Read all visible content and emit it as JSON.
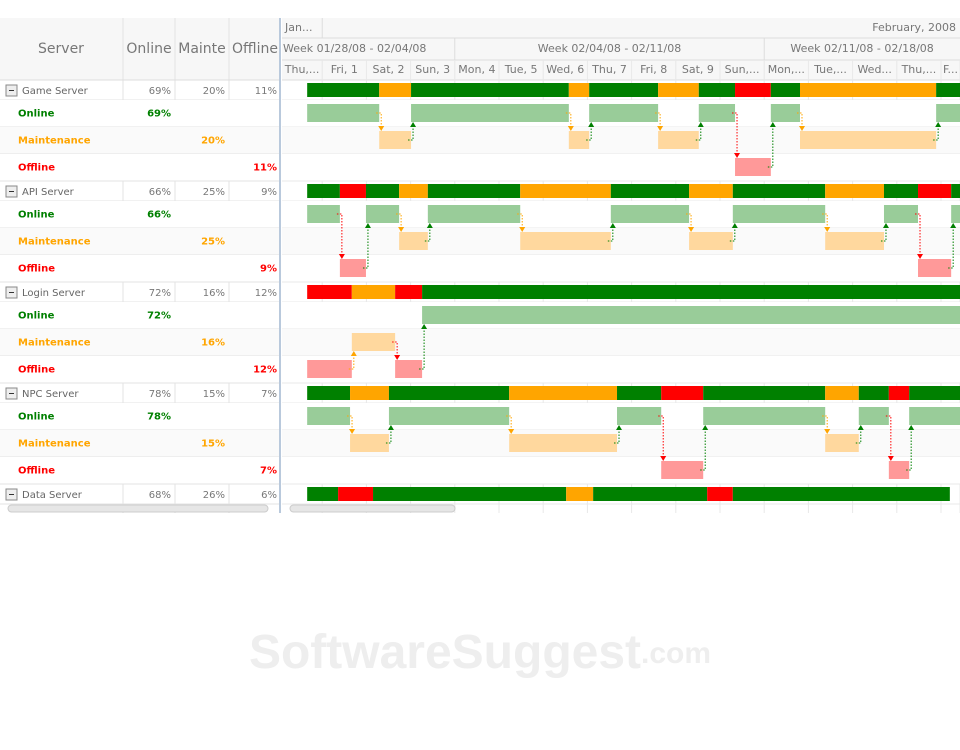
{
  "header": {
    "columns": [
      "Server",
      "Online",
      "Mainte",
      "Offline"
    ]
  },
  "timeline": {
    "months": [
      "Jan...",
      "February, 2008"
    ],
    "weeks": [
      "Week 01/28/08 - 02/04/08",
      "Week 02/04/08 - 02/11/08",
      "Week 02/11/08 - 02/18/08"
    ],
    "days": [
      "Thu,...",
      "Fri, 1",
      "Sat, 2",
      "Sun, 3",
      "Mon, 4",
      "Tue, 5",
      "Wed, 6",
      "Thu, 7",
      "Fri, 8",
      "Sat, 9",
      "Sun,...",
      "Mon,...",
      "Tue,...",
      "Wed...",
      "Thu,...",
      "F..."
    ]
  },
  "servers": [
    {
      "name": "Game Server",
      "online": "69%",
      "maintenance": "20%",
      "offline": "11%",
      "rows": [
        {
          "label": "Online",
          "value": "69%"
        },
        {
          "label": "Maintenance",
          "value": "20%"
        },
        {
          "label": "Offline",
          "value": "11%"
        }
      ],
      "segments": [
        {
          "state": "Online",
          "start": 0.66,
          "end": 2.29
        },
        {
          "state": "Maintenance",
          "start": 2.29,
          "end": 3.01
        },
        {
          "state": "Online",
          "start": 3.01,
          "end": 6.58
        },
        {
          "state": "Maintenance",
          "start": 6.58,
          "end": 7.04
        },
        {
          "state": "Online",
          "start": 7.04,
          "end": 8.6
        },
        {
          "state": "Maintenance",
          "start": 8.6,
          "end": 9.52
        },
        {
          "state": "Online",
          "start": 9.52,
          "end": 10.34
        },
        {
          "state": "Offline",
          "start": 10.34,
          "end": 11.15
        },
        {
          "state": "Online",
          "start": 11.15,
          "end": 11.81
        },
        {
          "state": "Maintenance",
          "start": 11.81,
          "end": 14.89
        },
        {
          "state": "Online",
          "start": 14.89,
          "end": 15.43
        }
      ]
    },
    {
      "name": "API Server",
      "online": "66%",
      "maintenance": "25%",
      "offline": "9%",
      "rows": [
        {
          "label": "Online",
          "value": "66%"
        },
        {
          "label": "Maintenance",
          "value": "25%"
        },
        {
          "label": "Offline",
          "value": "9%"
        }
      ],
      "segments": [
        {
          "state": "Online",
          "start": 0.66,
          "end": 1.4
        },
        {
          "state": "Offline",
          "start": 1.4,
          "end": 1.99
        },
        {
          "state": "Online",
          "start": 1.99,
          "end": 2.74
        },
        {
          "state": "Maintenance",
          "start": 2.74,
          "end": 3.39
        },
        {
          "state": "Online",
          "start": 3.39,
          "end": 5.48
        },
        {
          "state": "Maintenance",
          "start": 5.48,
          "end": 7.53
        },
        {
          "state": "Online",
          "start": 7.53,
          "end": 9.3
        },
        {
          "state": "Maintenance",
          "start": 9.3,
          "end": 10.29
        },
        {
          "state": "Online",
          "start": 10.29,
          "end": 12.38
        },
        {
          "state": "Maintenance",
          "start": 12.38,
          "end": 13.71
        },
        {
          "state": "Online",
          "start": 13.71,
          "end": 14.48
        },
        {
          "state": "Offline",
          "start": 14.48,
          "end": 15.23
        },
        {
          "state": "Online",
          "start": 15.23,
          "end": 15.43
        }
      ]
    },
    {
      "name": "Login Server",
      "online": "72%",
      "maintenance": "16%",
      "offline": "12%",
      "rows": [
        {
          "label": "Online",
          "value": "72%"
        },
        {
          "label": "Maintenance",
          "value": "16%"
        },
        {
          "label": "Offline",
          "value": "12%"
        }
      ],
      "segments": [
        {
          "state": "Offline",
          "start": 0.66,
          "end": 1.67
        },
        {
          "state": "Maintenance",
          "start": 1.67,
          "end": 2.65
        },
        {
          "state": "Offline",
          "start": 2.65,
          "end": 3.26
        },
        {
          "state": "Online",
          "start": 3.26,
          "end": 15.43
        }
      ]
    },
    {
      "name": "NPC Server",
      "online": "78%",
      "maintenance": "15%",
      "offline": "7%",
      "rows": [
        {
          "label": "Online",
          "value": "78%"
        },
        {
          "label": "Maintenance",
          "value": "15%"
        },
        {
          "label": "Offline",
          "value": "7%"
        }
      ],
      "segments": [
        {
          "state": "Online",
          "start": 0.66,
          "end": 1.63
        },
        {
          "state": "Maintenance",
          "start": 1.63,
          "end": 2.51
        },
        {
          "state": "Online",
          "start": 2.51,
          "end": 5.23
        },
        {
          "state": "Maintenance",
          "start": 5.23,
          "end": 7.67
        },
        {
          "state": "Online",
          "start": 7.67,
          "end": 8.67
        },
        {
          "state": "Offline",
          "start": 8.67,
          "end": 9.62
        },
        {
          "state": "Online",
          "start": 9.62,
          "end": 12.38
        },
        {
          "state": "Maintenance",
          "start": 12.38,
          "end": 13.14
        },
        {
          "state": "Online",
          "start": 13.14,
          "end": 13.82
        },
        {
          "state": "Offline",
          "start": 13.82,
          "end": 14.28
        },
        {
          "state": "Online",
          "start": 14.28,
          "end": 15.43
        }
      ]
    },
    {
      "name": "Data Server",
      "online": "68%",
      "maintenance": "26%",
      "offline": "6%",
      "segments": [
        {
          "state": "Online",
          "start": 0.66,
          "end": 1.36
        },
        {
          "state": "Offline",
          "start": 1.36,
          "end": 2.15
        },
        {
          "state": "Online",
          "start": 2.15,
          "end": 6.52
        },
        {
          "state": "Maintenance",
          "start": 6.52,
          "end": 7.13
        },
        {
          "state": "Online",
          "start": 7.13,
          "end": 9.71
        },
        {
          "state": "Offline",
          "start": 9.71,
          "end": 10.29
        },
        {
          "state": "Online",
          "start": 10.29,
          "end": 15.2
        }
      ]
    }
  ],
  "watermark": {
    "brand": "SoftwareSuggest",
    "suffix": ".com"
  }
}
